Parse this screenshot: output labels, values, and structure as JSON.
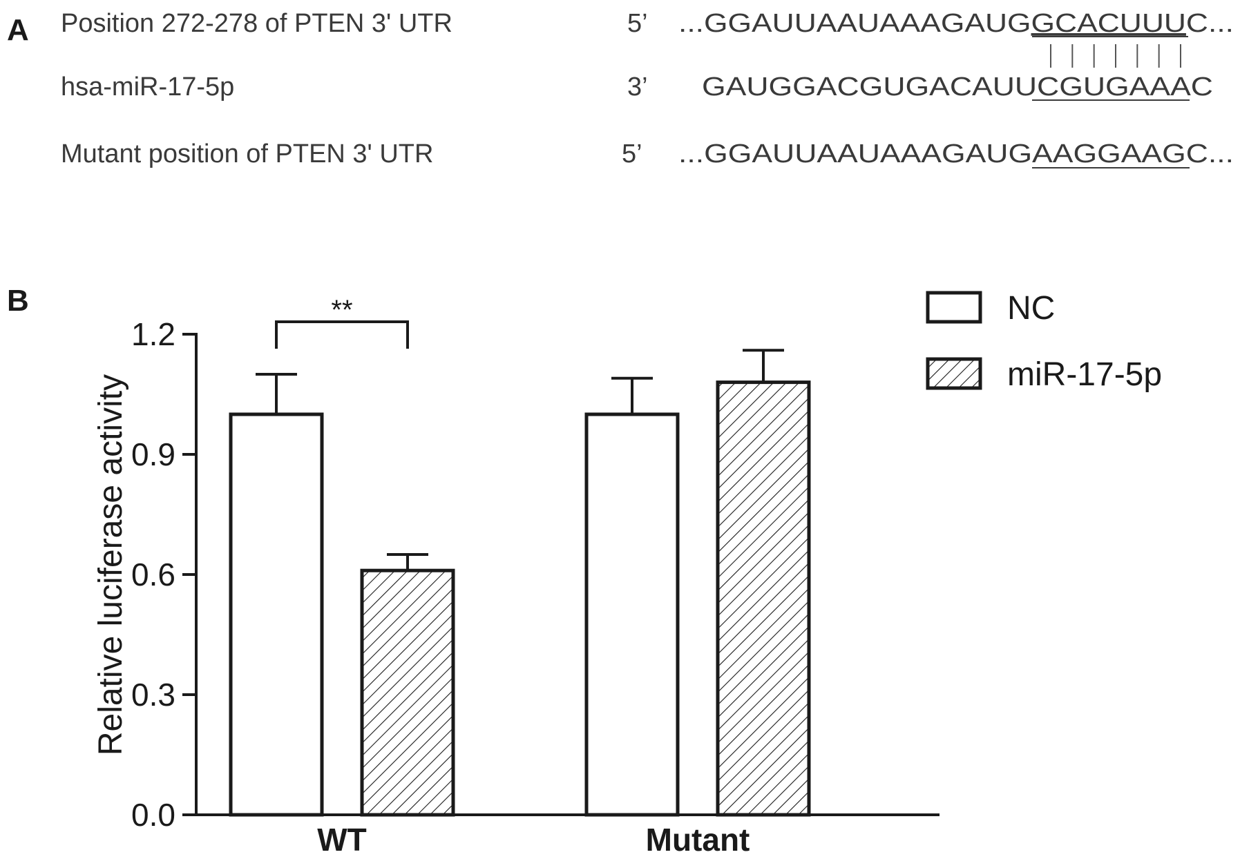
{
  "panel_a": {
    "label": "A",
    "rows": [
      {
        "name": "Position 272-278 of PTEN 3' UTR",
        "end": "5’",
        "prefix": "...GGAUUAAUAAAGAUG",
        "site": "GCACUUU",
        "suffix": "C..."
      },
      {
        "name": "hsa-miR-17-5p",
        "end": "3’",
        "prefix": "GAUGGACGUGACAUU",
        "site": "CGUGAAA",
        "suffix": "C"
      },
      {
        "name": "Mutant position of PTEN 3' UTR",
        "end": "5’",
        "prefix": "...GGAUUAAUAAAGAUG",
        "site": "AAGGAAG",
        "suffix": "C..."
      }
    ],
    "pair_count": 7
  },
  "panel_b": {
    "label": "B",
    "significance": "**"
  },
  "chart_data": {
    "type": "bar",
    "categories": [
      "WT",
      "Mutant"
    ],
    "ylabel": "Relative luciferase activity",
    "xlabel": "",
    "ylim": [
      0,
      1.2
    ],
    "yticks": [
      "0.0",
      "0.3",
      "0.6",
      "0.9",
      "1.2"
    ],
    "legend_position": "top-right",
    "series": [
      {
        "name": "NC",
        "values": [
          1.0,
          1.0
        ],
        "errors": [
          0.1,
          0.09
        ],
        "pattern": "open"
      },
      {
        "name": "miR-17-5p",
        "values": [
          0.61,
          1.08
        ],
        "errors": [
          0.04,
          0.08
        ],
        "pattern": "hatched"
      }
    ]
  },
  "colors": {
    "ink": "#1a1a1a",
    "muted": "#555555"
  }
}
